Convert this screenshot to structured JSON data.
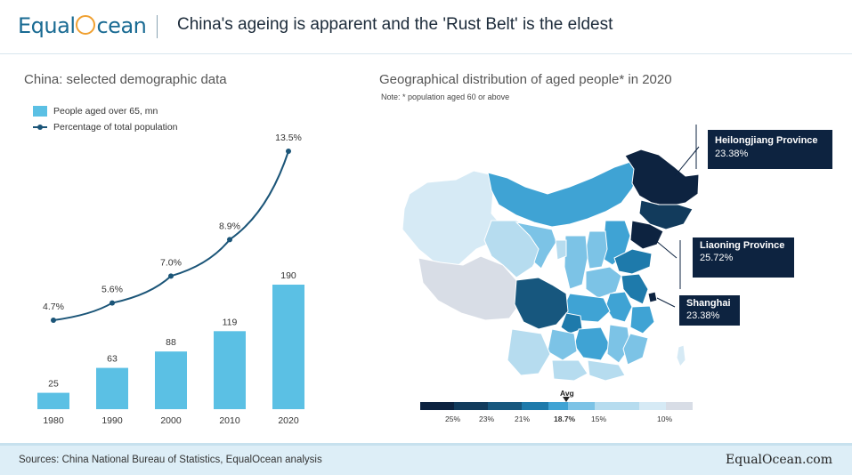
{
  "header": {
    "logo_text_before": "Equal",
    "logo_text_after": "cean",
    "title": "China's ageing is apparent and the 'Rust Belt' is the eldest"
  },
  "left_panel": {
    "title": "China: selected demographic data"
  },
  "right_panel": {
    "title": "Geographical distribution of aged people* in 2020",
    "note": "Note: * population aged 60 or above"
  },
  "chart_data": {
    "type": "bar",
    "categories": [
      "1980",
      "1990",
      "2000",
      "2010",
      "2020"
    ],
    "series": [
      {
        "name": "People aged over 65, mn",
        "type": "bar",
        "values": [
          25,
          63,
          88,
          119,
          190
        ],
        "labels": [
          "25",
          "63",
          "88",
          "119",
          "190"
        ]
      },
      {
        "name": "Percentage of total population",
        "type": "line",
        "values": [
          4.7,
          5.6,
          7.0,
          8.9,
          13.5
        ],
        "labels": [
          "4.7%",
          "5.6%",
          "7.0%",
          "8.9%",
          "13.5%"
        ]
      }
    ],
    "colors": {
      "bar": "#5bc0e4",
      "line": "#1b5578"
    },
    "legend": "top-left",
    "grid": false
  },
  "map": {
    "callouts": [
      {
        "name": "Heilongjiang Province",
        "value": "23.38%"
      },
      {
        "name": "Liaoning Province",
        "value": "25.72%"
      },
      {
        "name": "Shanghai",
        "value": "23.38%"
      }
    ],
    "scale": {
      "avg_label": "Avg",
      "ticks": [
        "25%",
        "23%",
        "21%",
        "18.7%",
        "15%",
        "10%"
      ],
      "colors": [
        "#0d2340",
        "#123b5c",
        "#17577e",
        "#1e7aab",
        "#3fa3d4",
        "#7cc3e6",
        "#b6dcef",
        "#d6eaf5",
        "#d8dde6"
      ]
    }
  },
  "footer": {
    "sources": "Sources: China National Bureau of Statistics, EqualOcean analysis",
    "brand": "EqualOcean.com"
  }
}
